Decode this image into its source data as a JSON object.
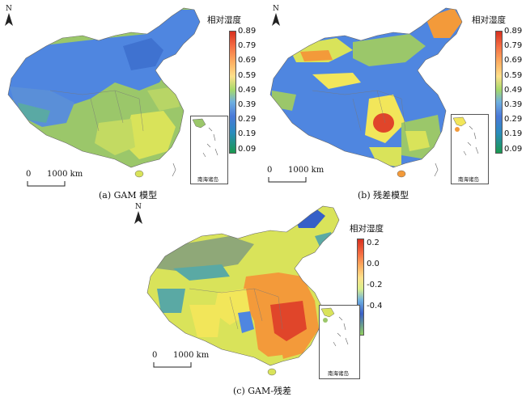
{
  "panels": [
    {
      "caption": "(a) GAM 模型",
      "legend_title": "相对湿度",
      "legend_ticks": [
        "0.89",
        "0.79",
        "0.69",
        "0.59",
        "0.49",
        "0.39",
        "0.29",
        "0.19",
        "0.09"
      ],
      "legend_gradient": [
        "#d7301f",
        "#f46d43",
        "#fdae61",
        "#fee08b",
        "#a6d96a",
        "#6fb0e0",
        "#4a78d8",
        "#2b8cbe",
        "#1a9850"
      ],
      "scale_label": "1000 km",
      "scale_zero": "0",
      "north": "N",
      "inset_label": "南海诸岛"
    },
    {
      "caption": "(b) 残差模型",
      "legend_title": "相对湿度",
      "legend_ticks": [
        "0.89",
        "0.79",
        "0.69",
        "0.59",
        "0.49",
        "0.39",
        "0.29",
        "0.19",
        "0.09"
      ],
      "legend_gradient": [
        "#d7301f",
        "#f46d43",
        "#fdae61",
        "#fee08b",
        "#a6d96a",
        "#6fb0e0",
        "#4a78d8",
        "#2b8cbe",
        "#1a9850"
      ],
      "scale_label": "1000 km",
      "scale_zero": "0",
      "north": "N",
      "inset_label": "南海诸岛"
    },
    {
      "caption": "(c) GAM-残差",
      "legend_title": "相对湿度",
      "legend_ticks": [
        "0.2",
        "0.0",
        "-0.2",
        "-0.4"
      ],
      "legend_gradient": [
        "#d7301f",
        "#f46d43",
        "#fee08b",
        "#d9ef8b",
        "#6fb0e0",
        "#3a60c8",
        "#91cf60"
      ],
      "scale_label": "1000 km",
      "scale_zero": "0",
      "north": "N",
      "inset_label": "南海诸岛"
    }
  ],
  "colors": {
    "blue": "#4f86e0",
    "deep_blue": "#3560c8",
    "green": "#9bc76a",
    "yellow_green": "#d9e35a",
    "yellow": "#f2e65a",
    "orange": "#f39a3a",
    "red": "#e0452a",
    "teal": "#5aa9a4",
    "grey_green": "#8fa878"
  }
}
